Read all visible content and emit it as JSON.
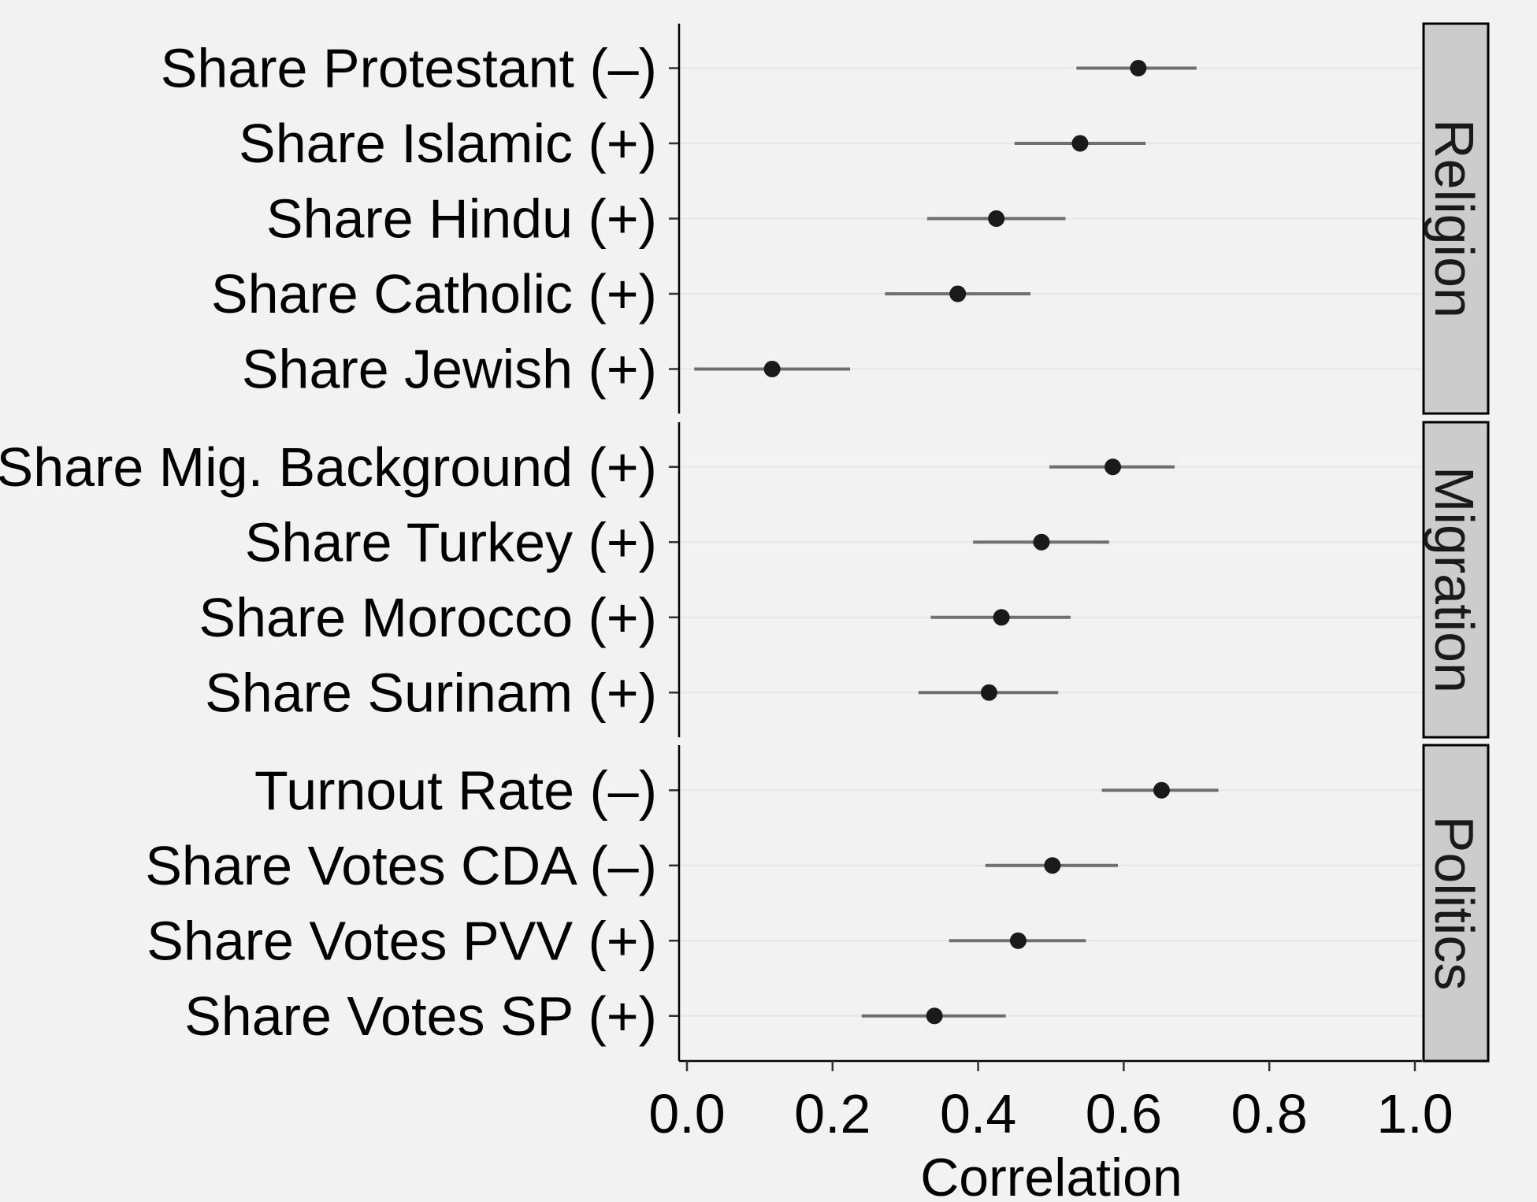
{
  "chart_data": {
    "type": "scatter",
    "subtype": "dot-and-whisker, faceted",
    "xlabel": "Correlation",
    "xlim": [
      0.0,
      1.0
    ],
    "x_ticks": [
      "0.0",
      "0.2",
      "0.4",
      "0.6",
      "0.8",
      "1.0"
    ],
    "x_tick_values": [
      0.0,
      0.2,
      0.4,
      0.6,
      0.8,
      1.0
    ],
    "grid": "horizontal major gridlines",
    "point_color": "#1a1a1a",
    "interval_color": "#6f6f6f",
    "panel_background": "#f2f2f2",
    "strip_fill": "#cccccc",
    "facets": [
      {
        "name": "Religion",
        "rows": [
          {
            "label": "Share Protestant (–)",
            "estimate": 0.62,
            "low": 0.535,
            "high": 0.7
          },
          {
            "label": "Share Islamic (+)",
            "estimate": 0.54,
            "low": 0.45,
            "high": 0.63
          },
          {
            "label": "Share Hindu (+)",
            "estimate": 0.425,
            "low": 0.33,
            "high": 0.52
          },
          {
            "label": "Share Catholic (+)",
            "estimate": 0.372,
            "low": 0.272,
            "high": 0.472
          },
          {
            "label": "Share Jewish (+)",
            "estimate": 0.117,
            "low": 0.01,
            "high": 0.224
          }
        ]
      },
      {
        "name": "Migration",
        "rows": [
          {
            "label": "Share Mig. Background (+)",
            "estimate": 0.585,
            "low": 0.498,
            "high": 0.67
          },
          {
            "label": "Share Turkey (+)",
            "estimate": 0.487,
            "low": 0.393,
            "high": 0.58
          },
          {
            "label": "Share Morocco (+)",
            "estimate": 0.432,
            "low": 0.335,
            "high": 0.527
          },
          {
            "label": "Share Surinam (+)",
            "estimate": 0.415,
            "low": 0.318,
            "high": 0.51
          }
        ]
      },
      {
        "name": "Politics",
        "rows": [
          {
            "label": "Turnout Rate (–)",
            "estimate": 0.652,
            "low": 0.57,
            "high": 0.73
          },
          {
            "label": "Share Votes CDA (–)",
            "estimate": 0.502,
            "low": 0.41,
            "high": 0.592
          },
          {
            "label": "Share Votes PVV (+)",
            "estimate": 0.455,
            "low": 0.36,
            "high": 0.548
          },
          {
            "label": "Share Votes SP (+)",
            "estimate": 0.34,
            "low": 0.24,
            "high": 0.438
          }
        ]
      }
    ]
  }
}
